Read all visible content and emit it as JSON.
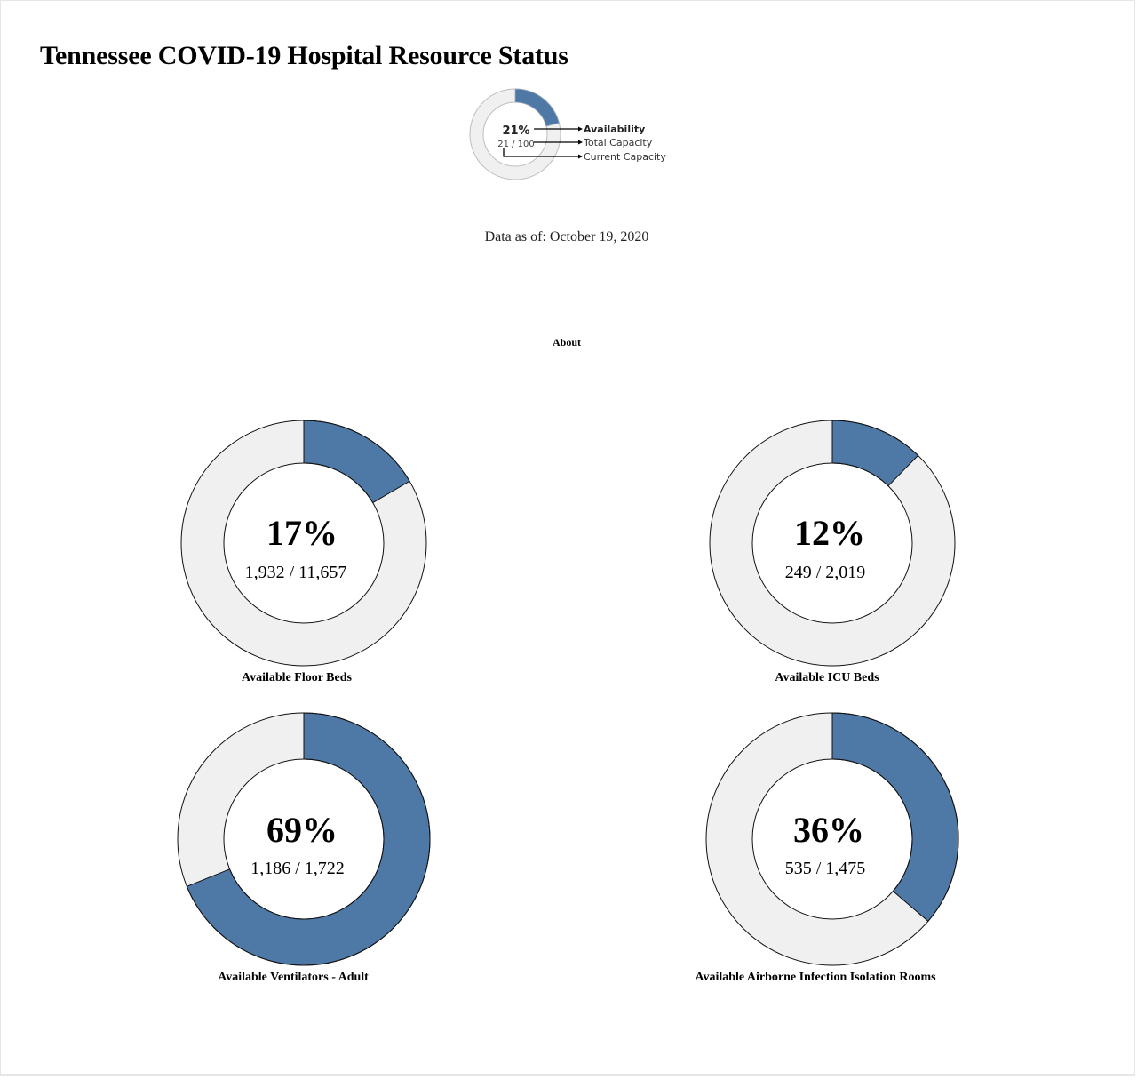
{
  "header": {
    "title": "Tennessee COVID-19 Hospital Resource Status"
  },
  "legend": {
    "percent": "21%",
    "fraction": "21 / 100",
    "value": 21,
    "total": 100,
    "label_availability": "Availability",
    "label_total": "Total Capacity",
    "label_current": "Current Capacity"
  },
  "data_as_of": "Data as of: October 19, 2020",
  "about_link": "About",
  "colors": {
    "available": "#4e79a7",
    "remaining": "#f0f0f0",
    "stroke": "#111111"
  },
  "chart_data": [
    {
      "type": "pie",
      "title": "Available Floor Beds",
      "percent_label": "17%",
      "fraction_label": "1,932 / 11,657",
      "available": 1932,
      "total": 11657
    },
    {
      "type": "pie",
      "title": "Available ICU Beds",
      "percent_label": "12%",
      "fraction_label": "249 / 2,019",
      "available": 249,
      "total": 2019
    },
    {
      "type": "pie",
      "title": "Available Ventilators - Adult",
      "percent_label": "69%",
      "fraction_label": "1,186 / 1,722",
      "available": 1186,
      "total": 1722
    },
    {
      "type": "pie",
      "title": "Available Airborne Infection Isolation Rooms",
      "percent_label": "36%",
      "fraction_label": "535 / 1,475",
      "available": 535,
      "total": 1475
    }
  ]
}
